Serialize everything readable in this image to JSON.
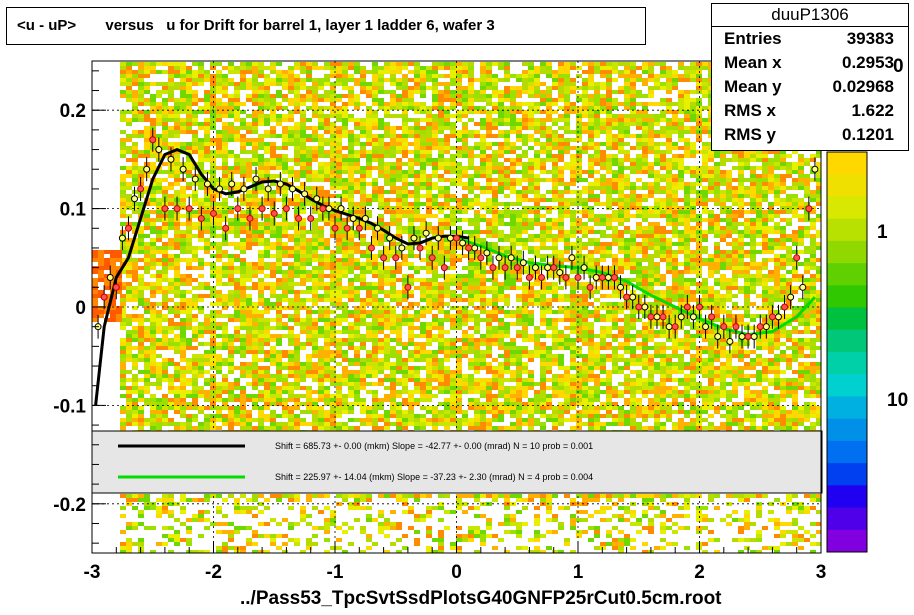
{
  "title": "<u - uP>       versus   u for Drift for barrel 1, layer 1 ladder 6, wafer 3",
  "stats": {
    "name": "duuP1306",
    "rows": [
      {
        "label": "Entries",
        "value": "39383"
      },
      {
        "label": "Mean x",
        "value": "0.2953"
      },
      {
        "label": "Mean y",
        "value": "0.02968"
      },
      {
        "label": "RMS x",
        "value": "1.622"
      },
      {
        "label": "RMS y",
        "value": "0.1201"
      }
    ]
  },
  "footer": "../Pass53_TpcSvtSsdPlotsG40GNFP25rCut0.5cm.root",
  "colorbar": {
    "ticks": [
      "1",
      "10"
    ],
    "clipped_label": "0"
  },
  "legend": [
    {
      "color": "#000000",
      "text": "Shift =   685.73 +- 0.00 (mkm) Slope =   -42.77 +- 0.00 (mrad)  N = 10 prob = 0.001"
    },
    {
      "color": "#00dd00",
      "text": "Shift =   225.97 +- 14.04 (mkm) Slope =   -37.23 +- 2.30 (mrad)  N = 4 prob = 0.004"
    }
  ],
  "chart_data": {
    "type": "scatter",
    "xlim": [
      -3,
      3
    ],
    "ylim": [
      -0.25,
      0.25
    ],
    "xticks": [
      "-3",
      "-2",
      "-1",
      "0",
      "1",
      "2",
      "3"
    ],
    "yticks": [
      "-0.2",
      "-0.1",
      "0",
      "0.1",
      "0.2"
    ],
    "grid": true,
    "series": [
      {
        "kind": "profile",
        "color": "#000000",
        "x": [
          -2.95,
          -2.85,
          -2.75,
          -2.65,
          -2.55,
          -2.45,
          -2.35,
          -2.25,
          -2.15,
          -2.05,
          -1.95,
          -1.85,
          -1.75,
          -1.65,
          -1.55,
          -1.45,
          -1.35,
          -1.25,
          -1.15,
          -1.05,
          -0.95,
          -0.85,
          -0.75,
          -0.65,
          -0.55,
          -0.45,
          -0.35,
          -0.25,
          -0.15,
          -0.05,
          0.05,
          0.15,
          0.25,
          0.35,
          0.45,
          0.55,
          0.65,
          0.75,
          0.85,
          0.95,
          1.05,
          1.15,
          1.25,
          1.35,
          1.45,
          1.55,
          1.65,
          1.75,
          1.85,
          1.95,
          2.05,
          2.15,
          2.25,
          2.35,
          2.45,
          2.55,
          2.65,
          2.75,
          2.85,
          2.95
        ],
        "y": [
          -0.02,
          0.03,
          0.07,
          0.11,
          0.14,
          0.16,
          0.15,
          0.14,
          0.13,
          0.125,
          0.12,
          0.125,
          0.12,
          0.13,
          0.12,
          0.125,
          0.12,
          0.115,
          0.11,
          0.1,
          0.1,
          0.09,
          0.09,
          0.08,
          0.07,
          0.06,
          0.07,
          0.075,
          0.07,
          0.07,
          0.065,
          0.06,
          0.055,
          0.05,
          0.05,
          0.045,
          0.04,
          0.04,
          0.035,
          0.05,
          0.04,
          0.03,
          0.03,
          0.02,
          0.01,
          0.0,
          -0.01,
          -0.02,
          -0.01,
          -0.01,
          -0.02,
          -0.03,
          -0.035,
          -0.03,
          -0.03,
          -0.02,
          -0.01,
          0.01,
          0.02,
          0.14
        ]
      },
      {
        "kind": "profile",
        "color": "#ff5050",
        "x": [
          -2.9,
          -2.8,
          -2.7,
          -2.6,
          -2.5,
          -2.4,
          -2.3,
          -2.2,
          -2.1,
          -2.0,
          -1.9,
          -1.8,
          -1.7,
          -1.6,
          -1.5,
          -1.4,
          -1.3,
          -1.2,
          -1.1,
          -1.0,
          -0.9,
          -0.8,
          -0.7,
          -0.6,
          -0.5,
          -0.4,
          -0.3,
          -0.2,
          -0.1,
          0.0,
          0.1,
          0.2,
          0.3,
          0.4,
          0.5,
          0.6,
          0.7,
          0.8,
          0.9,
          1.0,
          1.1,
          1.2,
          1.3,
          1.4,
          1.5,
          1.6,
          1.7,
          1.8,
          1.9,
          2.0,
          2.1,
          2.2,
          2.3,
          2.4,
          2.5,
          2.6,
          2.7,
          2.8,
          2.9
        ],
        "y": [
          0.01,
          0.02,
          0.08,
          0.12,
          0.17,
          0.1,
          0.1,
          0.1,
          0.09,
          0.095,
          0.08,
          0.1,
          0.09,
          0.1,
          0.095,
          0.1,
          0.09,
          0.09,
          0.1,
          0.08,
          0.08,
          0.08,
          0.06,
          0.05,
          0.05,
          0.02,
          0.06,
          0.05,
          0.04,
          0.07,
          0.06,
          0.05,
          0.04,
          0.04,
          0.04,
          0.03,
          0.03,
          0.04,
          0.03,
          0.03,
          0.02,
          0.03,
          0.03,
          0.01,
          0.0,
          -0.01,
          -0.01,
          -0.02,
          0.0,
          0.0,
          -0.01,
          -0.02,
          -0.02,
          -0.03,
          -0.02,
          -0.01,
          0.0,
          0.05,
          0.1
        ]
      }
    ],
    "fits": [
      {
        "name": "fit-black",
        "color": "#000000",
        "x": [
          -2.97,
          -2.9,
          -2.8,
          -2.7,
          -2.6,
          -2.5,
          -2.4,
          -2.3,
          -2.2,
          -2.1,
          -2.0,
          -1.9,
          -1.8,
          -1.7,
          -1.6,
          -1.5,
          -1.4,
          -1.3,
          -1.2,
          -1.1,
          -1.0,
          -0.9,
          -0.8,
          -0.7,
          -0.6,
          -0.5,
          -0.4,
          -0.3,
          -0.2,
          -0.1,
          0.0,
          0.1
        ],
        "y": [
          -0.1,
          -0.02,
          0.03,
          0.05,
          0.09,
          0.13,
          0.155,
          0.16,
          0.155,
          0.135,
          0.12,
          0.115,
          0.117,
          0.122,
          0.127,
          0.128,
          0.125,
          0.118,
          0.11,
          0.103,
          0.098,
          0.094,
          0.09,
          0.085,
          0.078,
          0.07,
          0.064,
          0.065,
          0.07,
          0.072,
          0.072,
          0.07
        ]
      },
      {
        "name": "fit-green",
        "color": "#00dd00",
        "x": [
          0.0,
          0.2,
          0.4,
          0.6,
          0.8,
          1.0,
          1.2,
          1.4,
          1.6,
          1.8,
          2.0,
          2.2,
          2.4,
          2.6,
          2.8,
          2.95
        ],
        "y": [
          0.07,
          0.062,
          0.052,
          0.045,
          0.042,
          0.04,
          0.035,
          0.026,
          0.012,
          0.0,
          -0.012,
          -0.022,
          -0.028,
          -0.025,
          -0.01,
          0.01
        ]
      }
    ]
  }
}
